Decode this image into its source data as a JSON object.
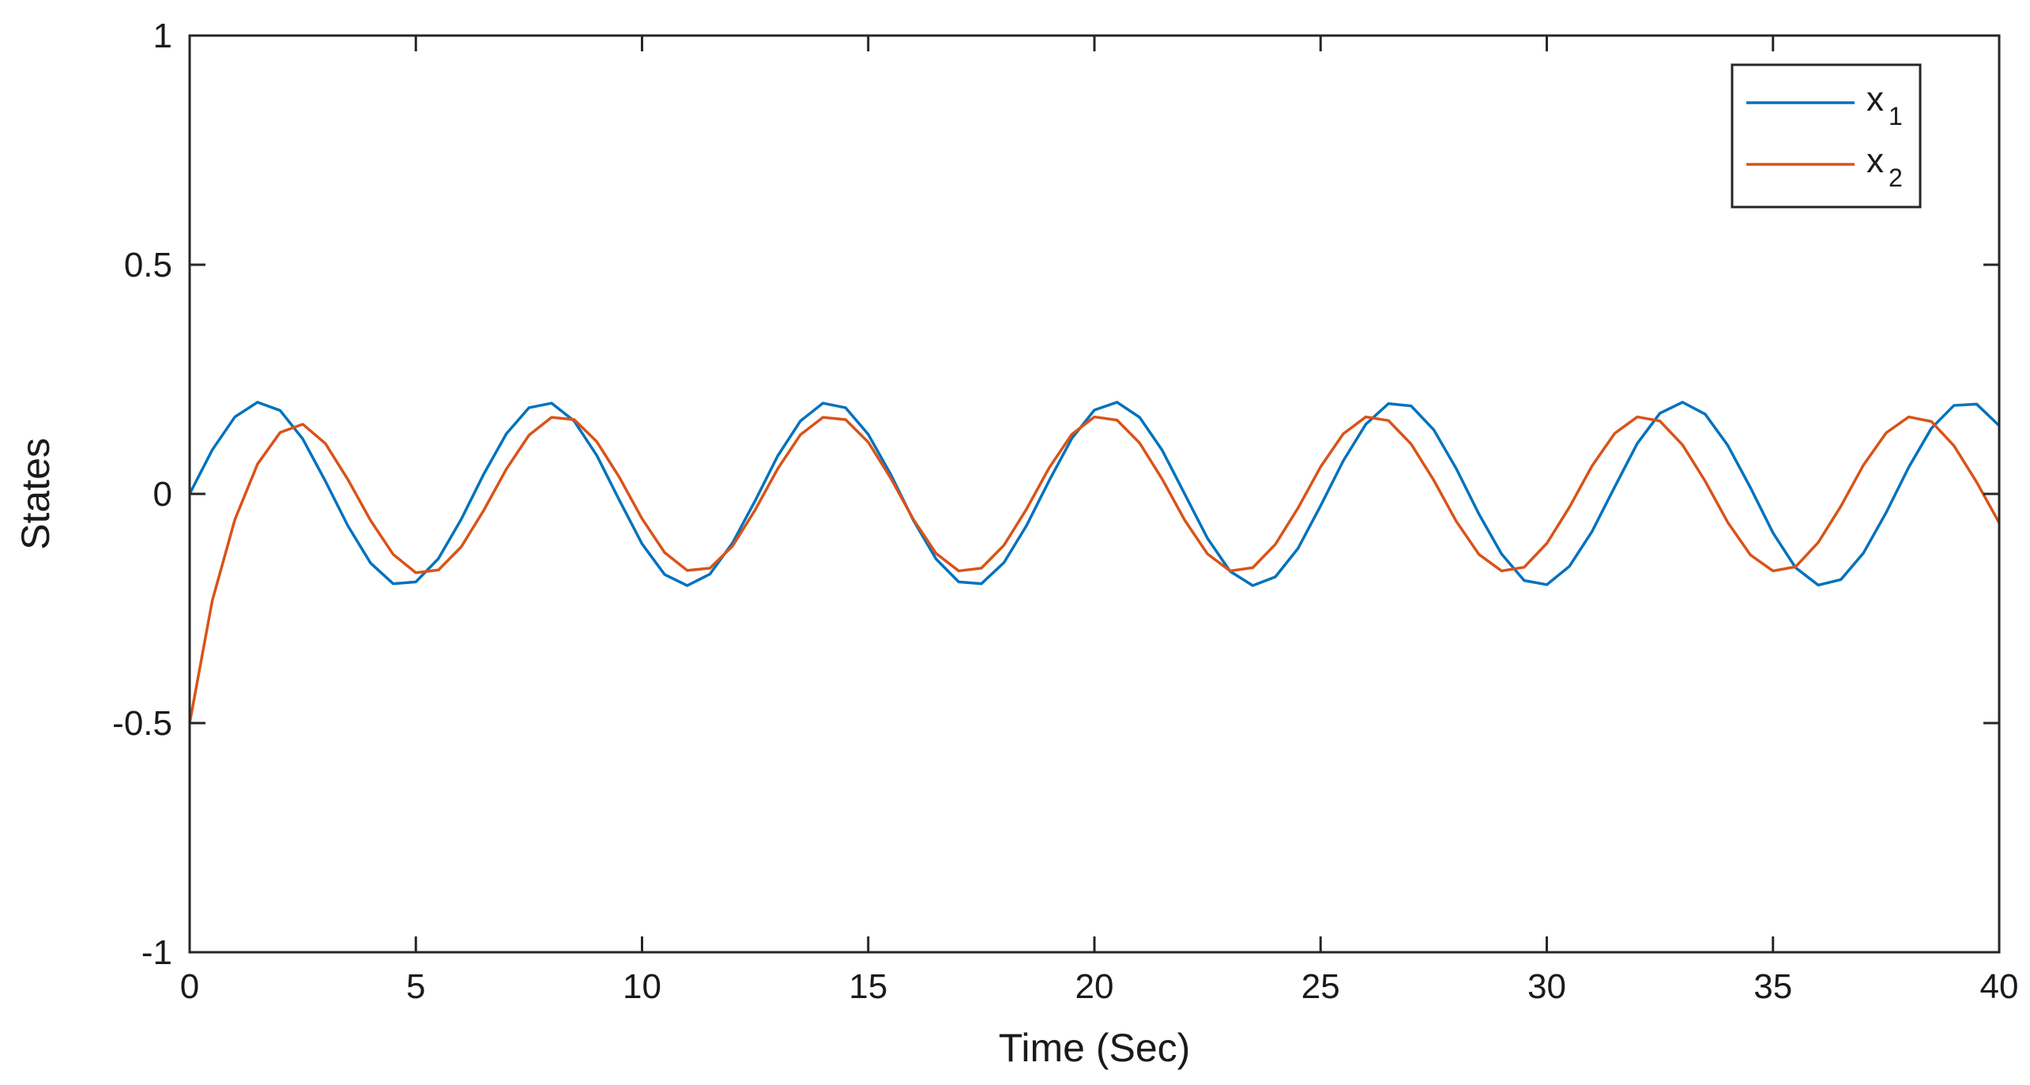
{
  "chart_data": {
    "type": "line",
    "title": "",
    "xlabel": "Time (Sec)",
    "ylabel": "States",
    "xlim": [
      0,
      40
    ],
    "ylim": [
      -1,
      1
    ],
    "x_ticks": [
      0,
      5,
      10,
      15,
      20,
      25,
      30,
      35,
      40
    ],
    "x_tick_labels": [
      "0",
      "5",
      "10",
      "15",
      "20",
      "25",
      "30",
      "35",
      "40"
    ],
    "y_ticks": [
      1,
      0.5,
      0,
      -0.5,
      -1
    ],
    "y_tick_labels": [
      "1",
      "0.5",
      "0",
      "-0.5",
      "-1"
    ],
    "grid": false,
    "legend_position": "top-right",
    "series": [
      {
        "name": "x",
        "subscript": "1",
        "color": "#0072BD",
        "x": [
          0,
          0.5,
          1,
          1.5,
          2,
          2.5,
          3,
          3.5,
          4,
          4.5,
          5,
          5.5,
          6,
          6.5,
          7,
          7.5,
          8,
          8.5,
          9,
          9.5,
          10,
          10.5,
          11,
          11.5,
          12,
          12.5,
          13,
          13.5,
          14,
          14.5,
          15,
          15.5,
          16,
          16.5,
          17,
          17.5,
          18,
          18.5,
          19,
          19.5,
          20,
          20.5,
          21,
          21.5,
          22,
          22.5,
          23,
          23.5,
          24,
          24.5,
          25,
          25.5,
          26,
          26.5,
          27,
          27.5,
          28,
          28.5,
          29,
          29.5,
          30,
          30.5,
          31,
          31.5,
          32,
          32.5,
          33,
          33.5,
          34,
          34.5,
          35,
          35.5,
          36,
          36.5,
          37,
          37.5,
          38,
          38.5,
          39,
          39.5,
          40
        ],
        "values": [
          0.0,
          0.096,
          0.168,
          0.2,
          0.182,
          0.12,
          0.028,
          -0.07,
          -0.151,
          -0.196,
          -0.192,
          -0.141,
          -0.056,
          0.043,
          0.131,
          0.188,
          0.198,
          0.159,
          0.084,
          -0.014,
          -0.109,
          -0.176,
          -0.2,
          -0.175,
          -0.107,
          -0.015,
          0.083,
          0.159,
          0.198,
          0.188,
          0.13,
          0.042,
          -0.058,
          -0.142,
          -0.192,
          -0.196,
          -0.15,
          -0.069,
          0.029,
          0.121,
          0.183,
          0.2,
          0.167,
          0.095,
          -0.001,
          -0.097,
          -0.169,
          -0.2,
          -0.181,
          -0.119,
          -0.026,
          0.072,
          0.152,
          0.197,
          0.192,
          0.14,
          0.055,
          -0.044,
          -0.131,
          -0.189,
          -0.198,
          -0.158,
          -0.082,
          0.015,
          0.11,
          0.176,
          0.2,
          0.174,
          0.106,
          0.014,
          -0.085,
          -0.161,
          -0.199,
          -0.187,
          -0.129,
          -0.041,
          0.058,
          0.143,
          0.193,
          0.196,
          0.149
        ]
      },
      {
        "name": "x",
        "subscript": "2",
        "color": "#D95319",
        "x": [
          0,
          0.5,
          1,
          1.5,
          2,
          2.5,
          3,
          3.5,
          4,
          4.5,
          5,
          5.5,
          6,
          6.5,
          7,
          7.5,
          8,
          8.5,
          9,
          9.5,
          10,
          10.5,
          11,
          11.5,
          12,
          12.5,
          13,
          13.5,
          14,
          14.5,
          15,
          15.5,
          16,
          16.5,
          17,
          17.5,
          18,
          18.5,
          19,
          19.5,
          20,
          20.5,
          21,
          21.5,
          22,
          22.5,
          23,
          23.5,
          24,
          24.5,
          25,
          25.5,
          26,
          26.5,
          27,
          27.5,
          28,
          28.5,
          29,
          29.5,
          30,
          30.5,
          31,
          31.5,
          32,
          32.5,
          33,
          33.5,
          34,
          34.5,
          35,
          35.5,
          36,
          36.5,
          37,
          37.5,
          38,
          38.5,
          39,
          39.5,
          40
        ],
        "values": [
          -0.5,
          -0.233,
          -0.056,
          0.065,
          0.134,
          0.152,
          0.11,
          0.031,
          -0.058,
          -0.132,
          -0.172,
          -0.166,
          -0.116,
          -0.036,
          0.054,
          0.128,
          0.167,
          0.162,
          0.114,
          0.036,
          -0.054,
          -0.128,
          -0.167,
          -0.162,
          -0.114,
          -0.035,
          0.055,
          0.129,
          0.167,
          0.162,
          0.113,
          0.034,
          -0.056,
          -0.13,
          -0.168,
          -0.162,
          -0.112,
          -0.033,
          0.057,
          0.13,
          0.168,
          0.161,
          0.111,
          0.032,
          -0.058,
          -0.131,
          -0.168,
          -0.161,
          -0.11,
          -0.031,
          0.059,
          0.131,
          0.168,
          0.16,
          0.109,
          0.03,
          -0.06,
          -0.132,
          -0.168,
          -0.16,
          -0.108,
          -0.029,
          0.061,
          0.132,
          0.168,
          0.159,
          0.107,
          0.028,
          -0.062,
          -0.133,
          -0.168,
          -0.159,
          -0.106,
          -0.027,
          0.063,
          0.133,
          0.168,
          0.158,
          0.105,
          0.026,
          -0.063
        ]
      }
    ]
  }
}
